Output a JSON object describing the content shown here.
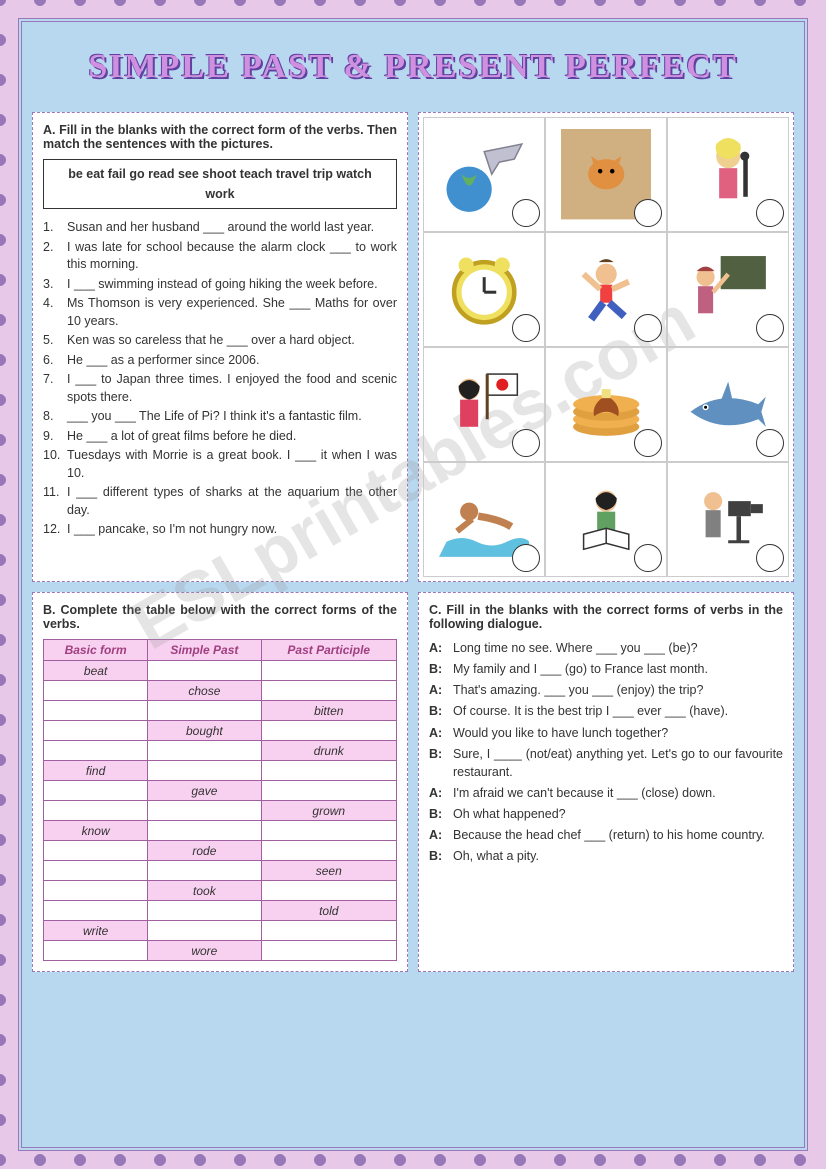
{
  "title": "SIMPLE PAST & PRESENT PERFECT",
  "watermark": "ESLprintables.com",
  "sectionA": {
    "heading": "A. Fill in the blanks with the correct form of the verbs. Then match the sentences with the pictures.",
    "wordbank": "be   eat   fail   go   read   see   shoot teach   travel   trip   watch   work",
    "items": [
      "Susan and her husband ___ around the world last year.",
      "I was late for school because the alarm clock ___ to work this morning.",
      "I ___ swimming instead of going hiking the week before.",
      "Ms Thomson is very experienced. She ___ Maths for over 10 years.",
      "Ken was so careless that he ___ over a hard object.",
      "He ___ as a performer since 2006.",
      "I ___ to Japan three times. I enjoyed the food and scenic spots there.",
      "___ you ___ The Life of Pi? I think it's a fantastic film.",
      "He ___ a lot of great films before he died.",
      "Tuesdays with Morrie is a great book. I ___ it when I was 10.",
      "I ___ different types of sharks at the aquarium the other day.",
      "I ___ pancake, so I'm not hungry now."
    ]
  },
  "sectionB": {
    "heading": "B. Complete the table below with the correct forms of the verbs.",
    "headers": [
      "Basic form",
      "Simple Past",
      "Past Participle"
    ],
    "rows": [
      {
        "c0": "beat",
        "f": 0
      },
      {
        "c1": "chose",
        "f": 1
      },
      {
        "c2": "bitten",
        "f": 2
      },
      {
        "c1": "bought",
        "f": 1
      },
      {
        "c2": "drunk",
        "f": 2
      },
      {
        "c0": "find",
        "f": 0
      },
      {
        "c1": "gave",
        "f": 1
      },
      {
        "c2": "grown",
        "f": 2
      },
      {
        "c0": "know",
        "f": 0
      },
      {
        "c1": "rode",
        "f": 1
      },
      {
        "c2": "seen",
        "f": 2
      },
      {
        "c1": "took",
        "f": 1
      },
      {
        "c2": "told",
        "f": 2
      },
      {
        "c0": "write",
        "f": 0
      },
      {
        "c1": "wore",
        "f": 1
      }
    ]
  },
  "sectionC": {
    "heading": "C. Fill in the blanks with the correct forms of verbs in the following dialogue.",
    "lines": [
      {
        "spk": "A:",
        "txt": "Long time no see. Where ___ you ___ (be)?"
      },
      {
        "spk": "B:",
        "txt": "My family and I ___ (go) to France last month."
      },
      {
        "spk": "A:",
        "txt": "That's amazing. ___ you ___ (enjoy) the trip?"
      },
      {
        "spk": "B:",
        "txt": "Of course. It is the best trip I ___ ever ___ (have)."
      },
      {
        "spk": "A:",
        "txt": "Would you like to have lunch together?"
      },
      {
        "spk": "B:",
        "txt": "Sure, I ____ (not/eat) anything yet. Let's go to our favourite restaurant."
      },
      {
        "spk": "A:",
        "txt": "I'm afraid we can't because it ___ (close) down."
      },
      {
        "spk": "B:",
        "txt": "Oh what happened?"
      },
      {
        "spk": "A:",
        "txt": "Because the head chef ___ (return) to his home country."
      },
      {
        "spk": "B:",
        "txt": "Oh, what a pity."
      }
    ]
  },
  "pics": [
    {
      "name": "plane-globe"
    },
    {
      "name": "tiger-boat"
    },
    {
      "name": "singer"
    },
    {
      "name": "alarm-clock"
    },
    {
      "name": "falling-boy"
    },
    {
      "name": "teacher"
    },
    {
      "name": "japan-flag-girl"
    },
    {
      "name": "pancakes"
    },
    {
      "name": "shark"
    },
    {
      "name": "swimmer"
    },
    {
      "name": "girl-reading"
    },
    {
      "name": "cameraman"
    }
  ],
  "colors": {
    "bg_dots": "#9878b8",
    "bg_pink": "#e8c8e8",
    "inner_blue": "#b8d8f0",
    "table_pink": "#f8d0f0",
    "table_border": "#a060a0"
  }
}
